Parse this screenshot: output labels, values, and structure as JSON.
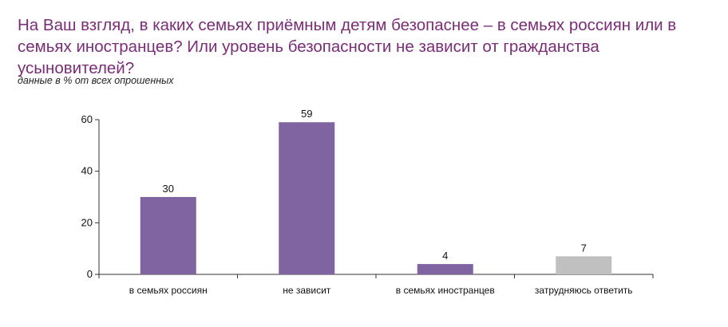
{
  "page": {
    "title": "На Ваш взгляд, в каких семьях приёмным детям безопаснее – в семьях россиян или в семьях иностранцев? Или уровень безопасности не зависит от гражданства усыновителей?",
    "subtitle": "данные в % от всех опрошенных"
  },
  "colors": {
    "title": "#7a2d77",
    "bar_primary": "#8064a2",
    "bar_secondary": "#c0c0c0",
    "axis": "#333333"
  },
  "chart_data": {
    "type": "bar",
    "title": "",
    "xlabel": "",
    "ylabel": "",
    "categories": [
      "в семьях россиян",
      "не зависит",
      "в семьях иностранцев",
      "затрудняюсь ответить"
    ],
    "values": [
      30,
      59,
      4,
      7
    ],
    "bar_colors": [
      "#8064a2",
      "#8064a2",
      "#8064a2",
      "#c0c0c0"
    ],
    "ylim": [
      0,
      60
    ],
    "yticks": [
      0,
      20,
      40,
      60
    ],
    "grid": false,
    "legend": "none"
  }
}
